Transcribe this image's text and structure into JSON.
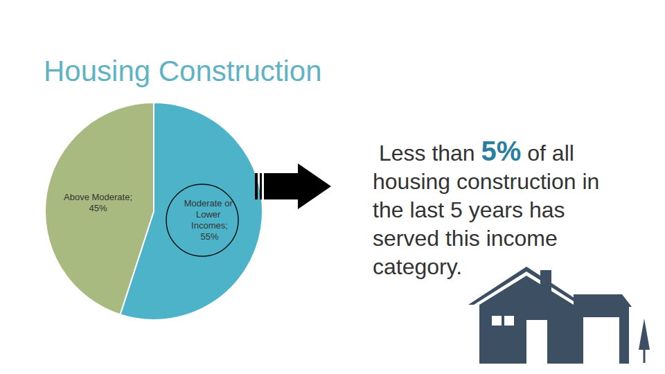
{
  "chart_data": {
    "type": "pie",
    "title": "Housing Construction",
    "categories": [
      "Moderate or Lower Incomes;",
      "Above Moderate;"
    ],
    "values": [
      55,
      45
    ],
    "value_labels": [
      "55%",
      "45%"
    ],
    "colors": [
      "#4db3c8",
      "#a8ba7f"
    ],
    "data_labels": true,
    "annotation": {
      "text_before": "Less than",
      "highlight": "5%",
      "text_after": "of all housing construction in the last 5 years has served this income category."
    }
  }
}
